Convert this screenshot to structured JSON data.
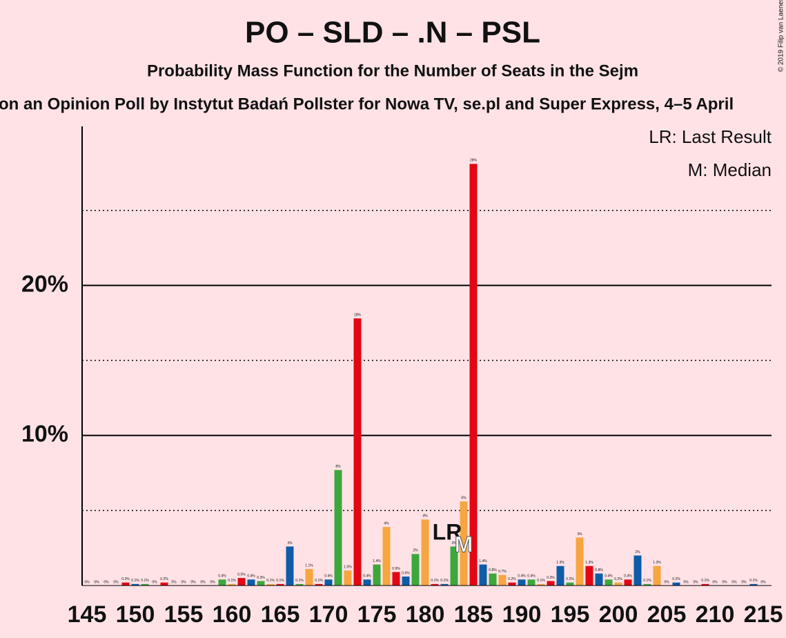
{
  "chart_data": {
    "type": "bar",
    "title": "PO – SLD – .N – PSL",
    "subtitle": "Probability Mass Function for the Number of Seats in the Sejm",
    "source": "on an Opinion Poll by Instytut Badań Pollster for Nowa TV, se.pl and Super Express, 4–5 April",
    "copyright": "© 2019 Filip van Laenen",
    "legend_notes": [
      "LR: Last Result",
      "M: Median"
    ],
    "last_result": {
      "x": 183,
      "label": "LR"
    },
    "median": {
      "x": 184,
      "label": "M"
    },
    "x": [
      145,
      146,
      147,
      148,
      149,
      150,
      151,
      152,
      153,
      154,
      155,
      156,
      157,
      158,
      159,
      160,
      161,
      162,
      163,
      164,
      165,
      166,
      167,
      168,
      169,
      170,
      171,
      172,
      173,
      174,
      175,
      176,
      177,
      178,
      179,
      180,
      181,
      182,
      183,
      184,
      185,
      186,
      187,
      188,
      189,
      190,
      191,
      192,
      193,
      194,
      195,
      196,
      197,
      198,
      199,
      200,
      201,
      202,
      203,
      204,
      205,
      206,
      207,
      208,
      209,
      210,
      211,
      212,
      213,
      214,
      215
    ],
    "values": [
      0,
      0,
      0,
      0,
      0.2,
      0.1,
      0.1,
      0,
      0.2,
      0,
      0,
      0,
      0,
      0,
      0.4,
      0.1,
      0.5,
      0.4,
      0.3,
      0.1,
      0.1,
      2.6,
      0.1,
      1.1,
      0.1,
      0.4,
      7.7,
      1.0,
      17.8,
      0.4,
      1.4,
      3.9,
      0.9,
      0.6,
      2.1,
      4.4,
      0.1,
      0.1,
      2.6,
      5.6,
      28.1,
      1.4,
      0.8,
      0.7,
      0.2,
      0.4,
      0.4,
      0.1,
      0.3,
      1.3,
      0.2,
      3.2,
      1.3,
      0.8,
      0.4,
      0.2,
      0.4,
      2.0,
      0.1,
      1.3,
      0,
      0.2,
      0,
      0,
      0.1,
      0,
      0,
      0,
      0,
      0.1,
      0
    ],
    "value_labels": [
      "0%",
      "0%",
      "0%",
      "0%",
      "0.2%",
      "0.1%",
      "0.1%",
      "0%",
      "0.2%",
      "0%",
      "0%",
      "0%",
      "0%",
      "0%",
      "0.4%",
      "0.1%",
      "0.5%",
      "0.4%",
      "0.3%",
      "0.1%",
      "0.1%",
      "3%",
      "0.1%",
      "1.1%",
      "0.1%",
      "0.4%",
      "8%",
      "1.0%",
      "18%",
      "0.4%",
      "1.4%",
      "4%",
      "0.9%",
      "0.6%",
      "2%",
      "4%",
      "0.1%",
      "0.1%",
      "3%",
      "6%",
      "28%",
      "1.4%",
      "0.8%",
      "0.7%",
      "0.2%",
      "0.4%",
      "0.4%",
      "0.1%",
      "0.3%",
      "1.3%",
      "0.2%",
      "3%",
      "1.3%",
      "0.8%",
      "0.4%",
      "0.2%",
      "0.4%",
      "2%",
      "0.1%",
      "1.3%",
      "0%",
      "0.2%",
      "0%",
      "0%",
      "0.1%",
      "0%",
      "0%",
      "0%",
      "0%",
      "0.1%",
      "0%"
    ],
    "palette": [
      "#e30613",
      "#0e5ca8",
      "#3ca83c",
      "#f7a540"
    ],
    "xlim": [
      144.5,
      215.5
    ],
    "xticks": [
      145,
      150,
      155,
      160,
      165,
      170,
      175,
      180,
      185,
      190,
      195,
      200,
      205,
      210,
      215
    ],
    "ylim": [
      0,
      30.6
    ],
    "yticks": [
      {
        "value": 10,
        "label": "10%"
      },
      {
        "value": 20,
        "label": "20%"
      }
    ],
    "minor_yticks": [
      5,
      15,
      25
    ],
    "grid": true
  }
}
